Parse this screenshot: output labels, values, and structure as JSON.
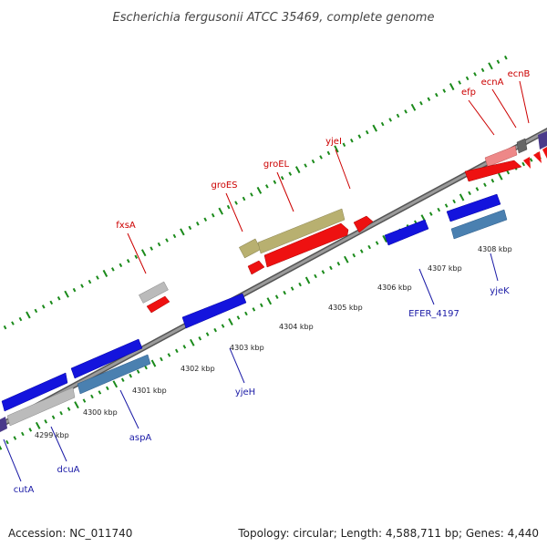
{
  "title": "Escherichia fergusonii ATCC 35469, complete genome",
  "footer": {
    "accession": "Accession: NC_011740",
    "summary": "Topology: circular; Length: 4,588,711 bp; Genes: 4,440"
  },
  "colors": {
    "backbone": "#888888",
    "tick": "#1a8a1a",
    "top_label": "#cc0000",
    "bottom_label": "#1a1aa6",
    "forward_red": "#ee1111",
    "forward_pink": "#ee8888",
    "khaki": "#b8b070",
    "grey": "#bbbbbb",
    "dark_grey": "#666666",
    "reverse_blue": "#1414dd",
    "steel_blue": "#4a80b0",
    "purple": "#4a3a8a"
  },
  "scale_labels": [
    "4299 kbp",
    "4300 kbp",
    "4301 kbp",
    "4302 kbp",
    "4303 kbp",
    "4304 kbp",
    "4305 kbp",
    "4306 kbp",
    "4307 kbp",
    "4308 kbp"
  ],
  "top_gene_labels": [
    "fxsA",
    "groES",
    "groEL",
    "yjeI",
    "efp",
    "ecnA",
    "ecnB"
  ],
  "bottom_gene_labels": [
    "cutA",
    "dcuA",
    "aspA",
    "yjeH",
    "EFER_4197",
    "yjeK"
  ]
}
